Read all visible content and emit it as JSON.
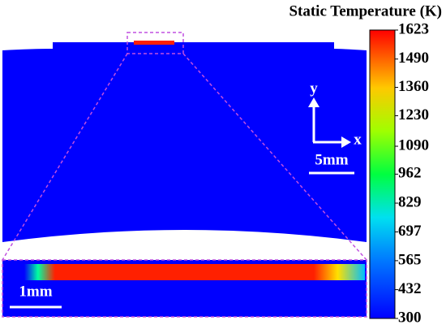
{
  "chart_data": {
    "type": "contour",
    "title": "Static Temperature (K)",
    "colorbar": {
      "lim": [
        300,
        1623
      ],
      "ticks": [
        1623,
        1490,
        1360,
        1230,
        1090,
        962,
        829,
        697,
        565,
        432,
        300
      ]
    },
    "annotations": [
      "y",
      "x",
      "5mm",
      "1mm"
    ]
  }
}
